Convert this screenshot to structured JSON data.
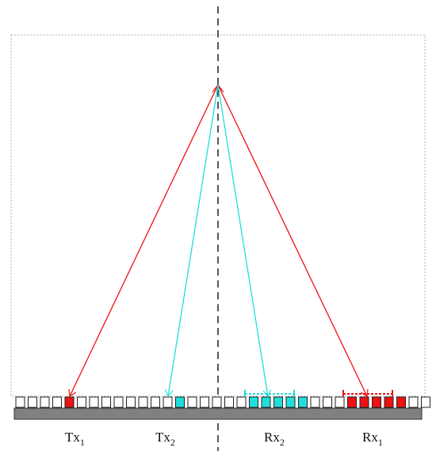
{
  "colors": {
    "tx1_rx1": "#ee1111",
    "tx2_rx2": "#22dddd",
    "element_outline": "#222222",
    "backing": "#808080",
    "frame": "#b0b0b0",
    "axis": "#111111"
  },
  "labels": [
    {
      "id": "tx1",
      "main": "Tx",
      "sub": "1"
    },
    {
      "id": "tx2",
      "main": "Tx",
      "sub": "2"
    },
    {
      "id": "rx2",
      "main": "Rx",
      "sub": "2"
    },
    {
      "id": "rx1",
      "main": "Rx",
      "sub": "1"
    }
  ],
  "array": {
    "element_count": 34,
    "tx1_index": 4,
    "tx2_index": 13,
    "rx2_indices": [
      19,
      20,
      21,
      22,
      23
    ],
    "rx1_indices": [
      27,
      28,
      29,
      30,
      31
    ],
    "center_index": 17
  }
}
